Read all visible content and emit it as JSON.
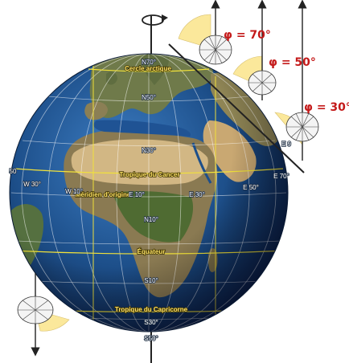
{
  "phi_labels": {
    "phi70": "φ = 70°",
    "phi50": "φ = 50°",
    "phi30": "φ = 30°"
  },
  "globe_labels": {
    "arctic_circle": "Cercle arctique",
    "cancer": "Tropique du Cancer",
    "prime_meridian": "Méridien d'origine",
    "equator": "Équateur",
    "capricorn": "Tropique du Capricorne",
    "n70": "N70°",
    "n50": "N50°",
    "n30": "N30°",
    "n10": "N10°",
    "s10": "S10°",
    "s30": "S30°",
    "s50": "S50°",
    "w30": "W 30°",
    "w10": "W 10°",
    "e10": "E 10°",
    "e30": "E 30°",
    "e50": "E 50°",
    "e70": "E 70°",
    "w50_edge": "50",
    "e_edge": "E 9"
  },
  "colors": {
    "ocean": "#1d4f8a",
    "land": "#8a7a52",
    "sahara": "#d2b784",
    "gridline": "#ffffff",
    "special_parallel": "#f2e23a",
    "sun_sector": "#fbe89b",
    "arrow": "#222222",
    "phi_text": "#c41a1a"
  }
}
